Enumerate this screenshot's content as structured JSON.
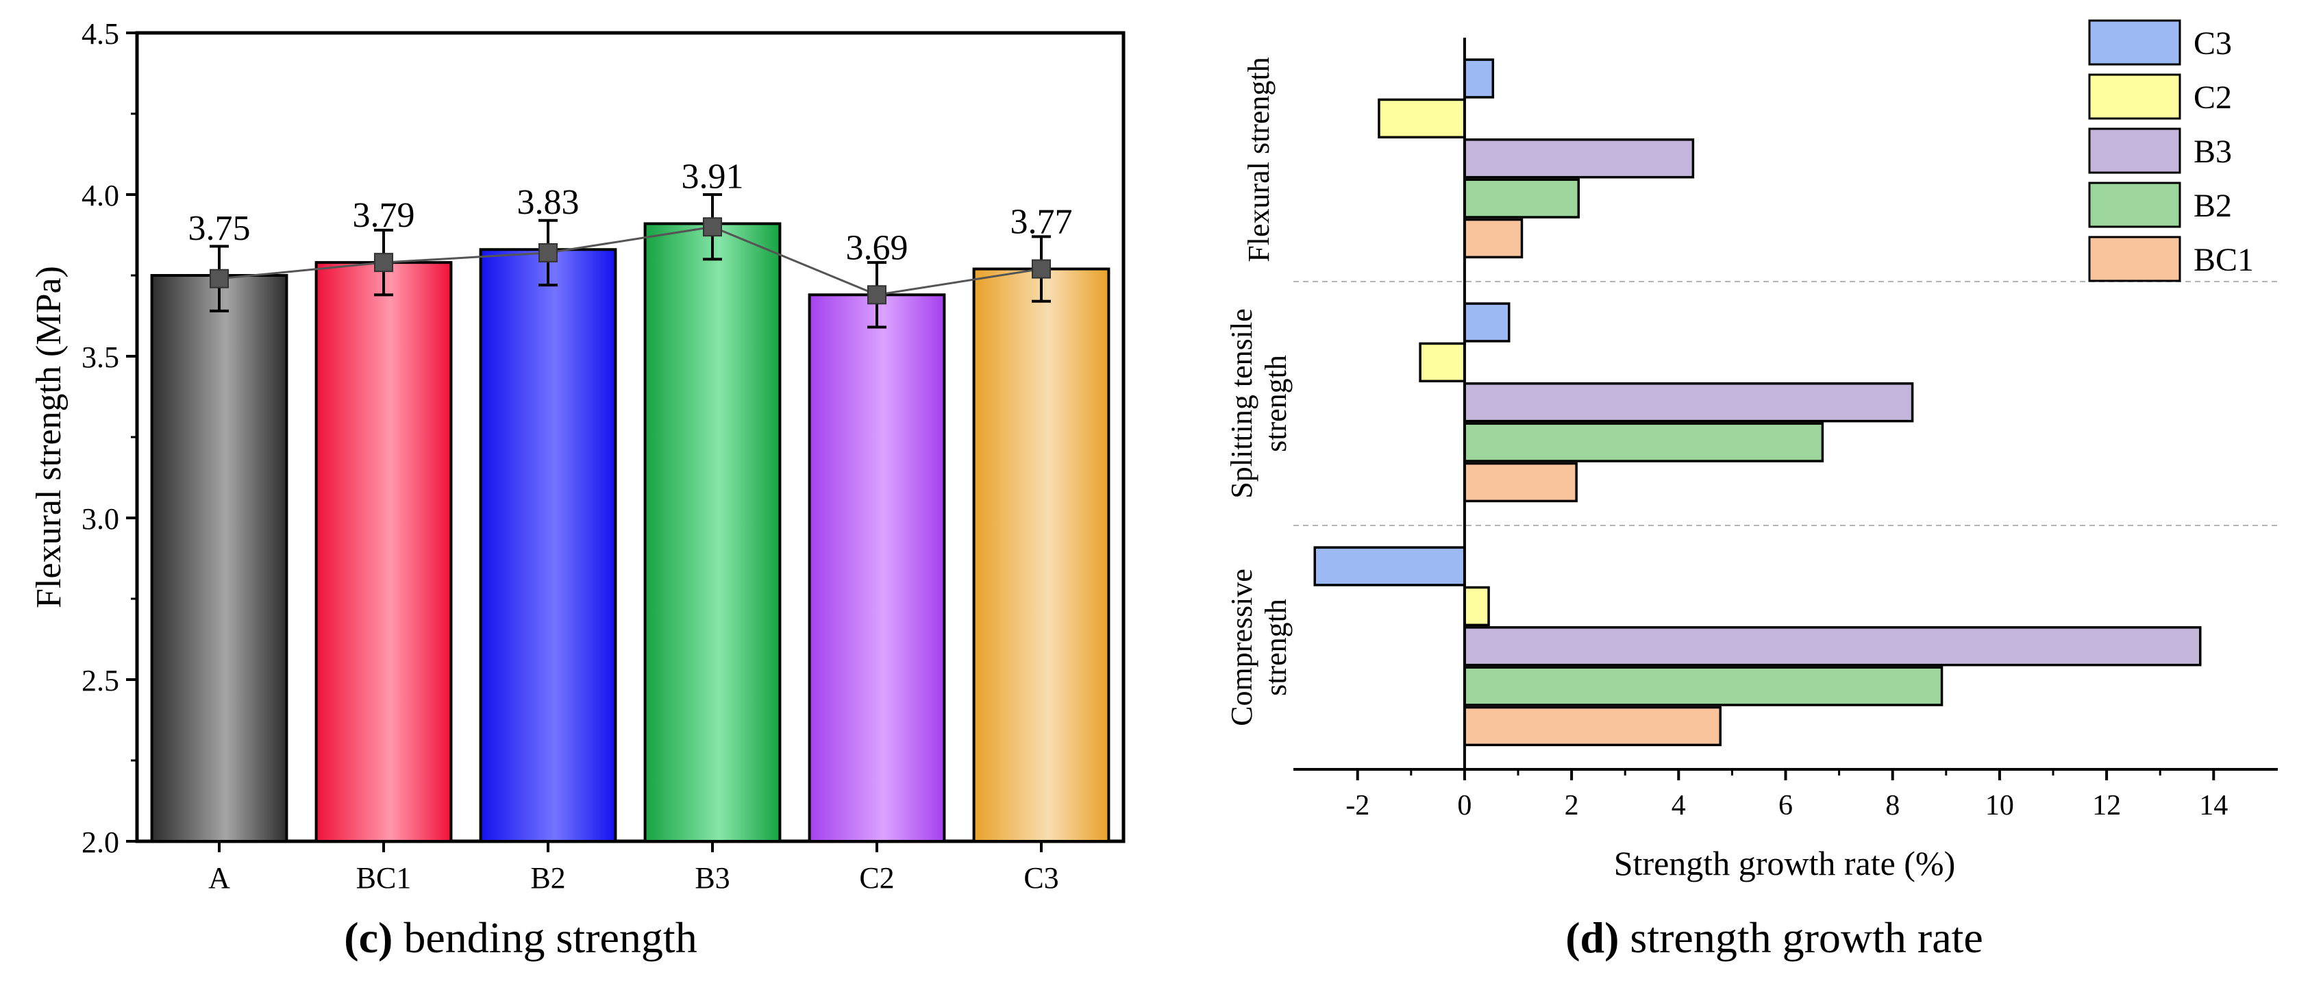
{
  "chart_data": [
    {
      "type": "bar",
      "panel": "c",
      "caption_letter": "(c)",
      "caption_text": " bending strength",
      "ylabel": "Flexural strength (MPa)",
      "xlabel": "",
      "ylim": [
        2.0,
        4.5
      ],
      "yticks": [
        "2.0",
        "2.5",
        "3.0",
        "3.5",
        "4.0",
        "4.5"
      ],
      "categories": [
        "A",
        "BC1",
        "B2",
        "B3",
        "C2",
        "C3"
      ],
      "values": [
        3.75,
        3.79,
        3.83,
        3.91,
        3.69,
        3.77
      ],
      "value_labels": [
        "3.75",
        "3.79",
        "3.83",
        "3.91",
        "3.69",
        "3.77"
      ],
      "line_means": [
        3.74,
        3.79,
        3.82,
        3.9,
        3.69,
        3.77
      ],
      "error": [
        0.1,
        0.1,
        0.1,
        0.1,
        0.1,
        0.1
      ],
      "colors": [
        [
          "#2e2e2e",
          "#a5a5a5"
        ],
        [
          "#f0123a",
          "#ff97ab"
        ],
        [
          "#1212f0",
          "#7474ff"
        ],
        [
          "#17a342",
          "#86e5a8"
        ],
        [
          "#a541ef",
          "#dba2ff"
        ],
        [
          "#e9a22a",
          "#f8ddb0"
        ]
      ]
    },
    {
      "type": "bar",
      "orientation": "horizontal",
      "panel": "d",
      "caption_letter": "(d)",
      "caption_text": " strength growth rate",
      "xlabel": "Strength growth rate (%)",
      "xlim": [
        -3.2,
        15.2
      ],
      "xticks": [
        "-2",
        "0",
        "2",
        "4",
        "6",
        "8",
        "10",
        "12",
        "14"
      ],
      "groups": [
        {
          "label_lines": [
            "Flexural strength"
          ],
          "values": {
            "C3": 0.53,
            "C2": -1.6,
            "B3": 4.27,
            "B2": 2.13,
            "BC1": 1.07
          }
        },
        {
          "label_lines": [
            "Splitting tensile",
            "strength"
          ],
          "values": {
            "C3": 0.83,
            "C2": -0.83,
            "B3": 8.37,
            "B2": 6.69,
            "BC1": 2.09
          }
        },
        {
          "label_lines": [
            "Compressive",
            "strength"
          ],
          "values": {
            "C3": -2.8,
            "C2": 0.45,
            "B3": 13.75,
            "B2": 8.92,
            "BC1": 4.78
          }
        }
      ],
      "series": [
        "C3",
        "C2",
        "B3",
        "B2",
        "BC1"
      ],
      "legend": [
        "C3",
        "C2",
        "B3",
        "B2",
        "BC1"
      ],
      "legend_position": "top-right",
      "colors": {
        "C3": "#9cb9f3",
        "C2": "#fefe9e",
        "B3": "#c3b6da",
        "B2": "#9dd69c",
        "BC1": "#f9c49b"
      }
    }
  ]
}
